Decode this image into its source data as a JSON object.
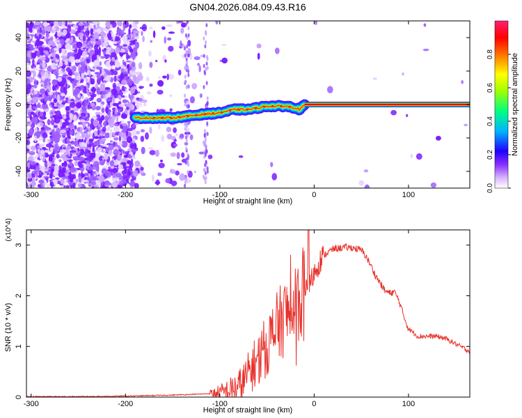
{
  "title": "GN04.2026.084.09.43.R16",
  "chart_data": [
    {
      "type": "heatmap",
      "xlabel": "Height of straight line (km)",
      "ylabel": "Frequency (Hz)",
      "xlim": [
        -305,
        165
      ],
      "ylim": [
        -50,
        50
      ],
      "xticks": [
        -300,
        -200,
        -100,
        0,
        100
      ],
      "xtick_labels": [
        "-300",
        "-200",
        "-100",
        "0",
        "100"
      ],
      "yticks": [
        -40,
        -20,
        0,
        20,
        40
      ],
      "ytick_labels": [
        "-40",
        "-20",
        "0",
        "20",
        "40"
      ],
      "colorbar": {
        "label": "Normalized spectral amplitude",
        "range": [
          0,
          1
        ],
        "ticks": [
          0.0,
          0.2,
          0.4,
          0.6,
          0.8
        ],
        "tick_labels": [
          "0.0",
          "0.2",
          "0.4",
          "0.6",
          "0.8"
        ],
        "colors": [
          "#ffffff",
          "#b070ff",
          "#6000ff",
          "#0000ff",
          "#00c8ff",
          "#00ff80",
          "#ffff00",
          "#ff8000",
          "#ff0000",
          "#ff2080"
        ]
      },
      "ridge": {
        "x": [
          -190,
          -170,
          -150,
          -135,
          -120,
          -100,
          -85,
          -70,
          -60,
          -50,
          -40,
          -30,
          -20,
          -15,
          -10,
          0,
          50,
          100,
          165
        ],
        "y": [
          -8,
          -8,
          -8,
          -7,
          -6,
          -5,
          -3,
          -3,
          -2,
          -1,
          -1,
          -1,
          -2,
          -3,
          0,
          0,
          0,
          0,
          0
        ]
      },
      "grid": false
    },
    {
      "type": "line",
      "xlabel": "Height of straight line (km)",
      "ylabel": "SNR (10 * v/v)",
      "y_multiplier_label": "(x10^4)",
      "xlim": [
        -305,
        165
      ],
      "ylim": [
        0,
        3.3
      ],
      "xticks": [
        -300,
        -200,
        -100,
        0,
        100
      ],
      "xtick_labels": [
        "-300",
        "-200",
        "-100",
        "0",
        "100"
      ],
      "yticks": [
        0,
        1,
        2,
        3
      ],
      "ytick_labels": [
        "0",
        "1",
        "2",
        "3"
      ],
      "series": [
        {
          "color": "#e8302a",
          "x": [
            -305,
            -250,
            -200,
            -150,
            -120,
            -100,
            -90,
            -80,
            -75,
            -70,
            -65,
            -60,
            -55,
            -50,
            -45,
            -40,
            -35,
            -30,
            -25,
            -20,
            -15,
            -10,
            -5,
            0,
            5,
            10,
            20,
            30,
            40,
            50,
            55,
            60,
            65,
            70,
            75,
            80,
            85,
            90,
            95,
            100,
            110,
            120,
            130,
            140,
            150,
            160,
            165
          ],
          "y": [
            0.01,
            0.01,
            0.02,
            0.04,
            0.06,
            0.08,
            0.12,
            0.2,
            0.3,
            0.45,
            0.6,
            0.75,
            0.9,
            1.0,
            1.2,
            1.35,
            1.5,
            1.6,
            1.7,
            1.8,
            1.95,
            2.05,
            2.2,
            2.45,
            2.65,
            2.8,
            2.92,
            2.95,
            2.95,
            2.9,
            2.78,
            2.6,
            2.4,
            2.25,
            2.1,
            2.05,
            2.08,
            1.9,
            1.6,
            1.35,
            1.2,
            1.2,
            1.2,
            1.15,
            1.05,
            0.95,
            0.9
          ]
        }
      ],
      "grid": false
    }
  ]
}
